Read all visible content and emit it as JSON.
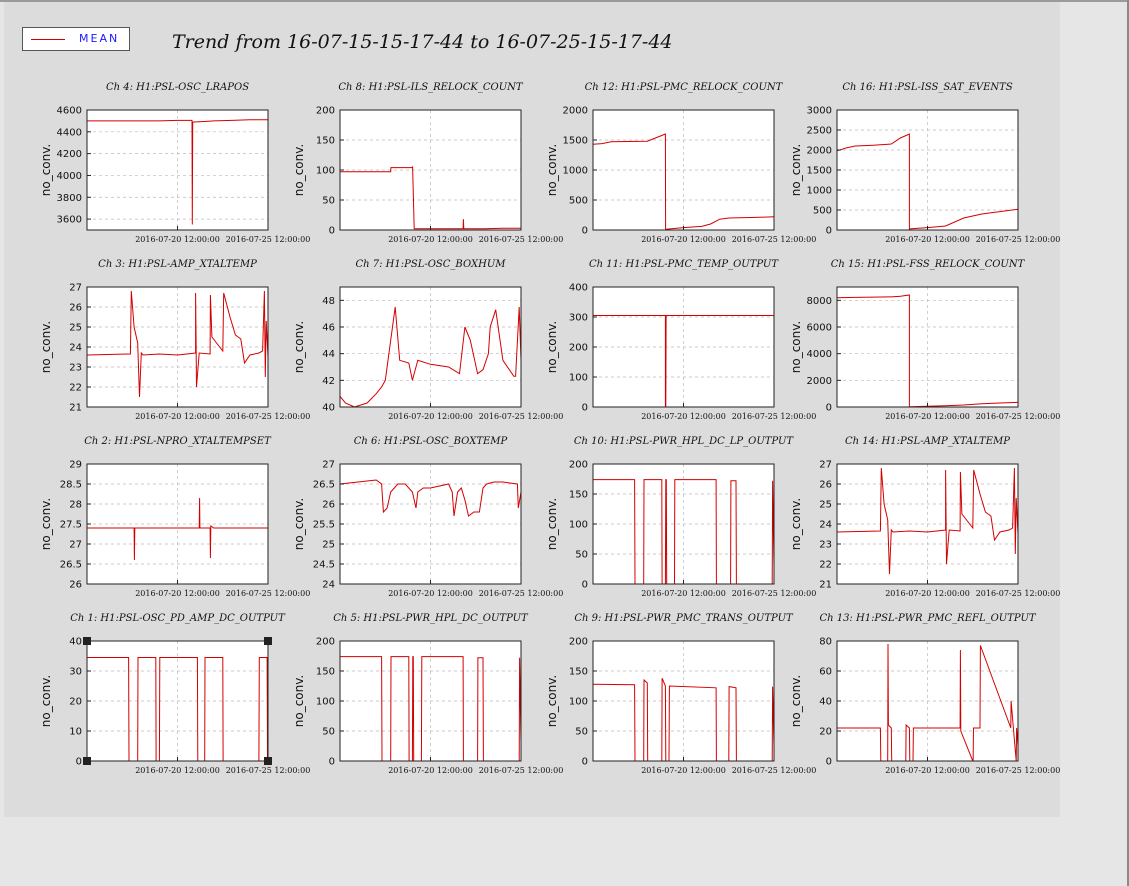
{
  "legend": {
    "label": "MEAN",
    "color": "#d40000"
  },
  "title": "Trend from 16-07-15-15-17-44 to 16-07-25-15-17-44",
  "colors": {
    "series": "#d40000",
    "grid": "#bbbbbb",
    "plot_bg": "#ffffff"
  },
  "chart_data": [
    {
      "type": "line",
      "title": "Ch 4: H1:PSL-OSC_LRAPOS",
      "ylabel": "no_conv.",
      "ylim": [
        3500,
        4600
      ],
      "yticks": [
        3600,
        3800,
        4000,
        4200,
        4400,
        4600
      ],
      "xlim": [
        0,
        10
      ],
      "xticks": [
        5,
        10
      ],
      "xticklabels": [
        "2016-07-20 12:00:00",
        "2016-07-25 12:00:00"
      ],
      "grid": true,
      "x": [
        0,
        1,
        2,
        3,
        4,
        5,
        5.8,
        5.82,
        5.84,
        5.9,
        6.5,
        7,
        8,
        9,
        10
      ],
      "y": [
        4500,
        4500,
        4500,
        4500,
        4500,
        4505,
        4505,
        3550,
        4490,
        4490,
        4495,
        4500,
        4505,
        4510,
        4510
      ]
    },
    {
      "type": "line",
      "title": "Ch 8: H1:PSL-ILS_RELOCK_COUNT",
      "ylabel": "no_conv.",
      "ylim": [
        0,
        200
      ],
      "yticks": [
        0,
        50,
        100,
        150,
        200
      ],
      "xlim": [
        0,
        10
      ],
      "xticks": [
        5,
        10
      ],
      "xticklabels": [
        "2016-07-20 12:00:00",
        "2016-07-25 12:00:00"
      ],
      "grid": true,
      "x": [
        0,
        2.8,
        2.81,
        4,
        4.01,
        4.1,
        4.3,
        5,
        6.8,
        6.82,
        6.84,
        7,
        8,
        9,
        10
      ],
      "y": [
        97,
        97,
        104,
        104,
        106,
        2,
        2,
        2,
        2,
        18,
        2,
        2,
        2,
        3,
        3
      ]
    },
    {
      "type": "line",
      "title": "Ch 12: H1:PSL-PMC_RELOCK_COUNT",
      "ylabel": "no_conv.",
      "ylim": [
        0,
        2000
      ],
      "yticks": [
        0,
        500,
        1000,
        1500,
        2000
      ],
      "xlim": [
        0,
        10
      ],
      "xticks": [
        5,
        10
      ],
      "xticklabels": [
        "2016-07-20 12:00:00",
        "2016-07-25 12:00:00"
      ],
      "grid": true,
      "x": [
        0,
        0.5,
        1,
        3,
        3.5,
        4,
        4.01,
        4.1,
        5,
        6,
        6.5,
        7,
        7.5,
        9,
        10
      ],
      "y": [
        1430,
        1440,
        1470,
        1480,
        1540,
        1600,
        10,
        15,
        40,
        60,
        100,
        180,
        200,
        210,
        220
      ]
    },
    {
      "type": "line",
      "title": "Ch 16: H1:PSL-ISS_SAT_EVENTS",
      "ylabel": "no_conv.",
      "ylim": [
        0,
        3000
      ],
      "yticks": [
        0,
        500,
        1000,
        1500,
        2000,
        2500,
        3000
      ],
      "xlim": [
        0,
        10
      ],
      "xticks": [
        5,
        10
      ],
      "xticklabels": [
        "2016-07-20 12:00:00",
        "2016-07-25 12:00:00"
      ],
      "grid": true,
      "x": [
        0,
        0.5,
        1,
        2,
        3,
        3.5,
        4,
        4,
        4.1,
        5,
        6,
        7,
        8,
        9,
        10
      ],
      "y": [
        1980,
        2050,
        2100,
        2120,
        2150,
        2300,
        2400,
        20,
        30,
        60,
        100,
        300,
        400,
        460,
        520
      ]
    },
    {
      "type": "line",
      "title": "Ch 3: H1:PSL-AMP_XTALTEMP",
      "ylabel": "no_conv.",
      "ylim": [
        21,
        27
      ],
      "yticks": [
        21,
        22,
        23,
        24,
        25,
        26,
        27
      ],
      "xlim": [
        0,
        10
      ],
      "xticks": [
        5,
        10
      ],
      "xticklabels": [
        "2016-07-20 12:00:00",
        "2016-07-25 12:00:00"
      ],
      "grid": true,
      "x": [
        0,
        2.4,
        2.45,
        2.6,
        2.8,
        2.9,
        3,
        3.1,
        4,
        5,
        6,
        6,
        6.05,
        6.2,
        6.8,
        6.82,
        6.9,
        7.5,
        7.55,
        7.9,
        8.2,
        8.5,
        8.7,
        9,
        9.5,
        9.7,
        9.8,
        9.85,
        9.9,
        10
      ],
      "y": [
        23.6,
        23.65,
        26.8,
        25.0,
        24.2,
        21.5,
        23.7,
        23.6,
        23.65,
        23.6,
        23.7,
        26.7,
        22,
        23.7,
        23.65,
        26.6,
        24.5,
        23.8,
        26.7,
        25.5,
        24.6,
        24.4,
        23.2,
        23.6,
        23.7,
        23.8,
        26.8,
        22.5,
        25.3,
        23.5
      ]
    },
    {
      "type": "line",
      "title": "Ch 7: H1:PSL-OSC_BOXHUM",
      "ylabel": "no_conv.",
      "ylim": [
        40,
        49
      ],
      "yticks": [
        40,
        42,
        44,
        46,
        48
      ],
      "xlim": [
        0,
        10
      ],
      "xticks": [
        5,
        10
      ],
      "xticklabels": [
        "2016-07-20 12:00:00",
        "2016-07-25 12:00:00"
      ],
      "grid": true,
      "x": [
        0,
        0.3,
        0.8,
        1.5,
        2,
        2.3,
        2.5,
        2.8,
        3.05,
        3.3,
        3.8,
        4,
        4.3,
        5,
        6,
        6.6,
        6.9,
        7.2,
        7.6,
        7.9,
        8.2,
        8.3,
        8.6,
        9,
        9.6,
        9.7,
        9.9,
        10
      ],
      "y": [
        40.8,
        40.3,
        40.0,
        40.3,
        41.0,
        41.5,
        42.0,
        45.0,
        47.5,
        43.5,
        43.3,
        42.0,
        43.5,
        43.2,
        43.0,
        42.5,
        46.0,
        45.0,
        42.5,
        42.8,
        44.0,
        46.0,
        47.3,
        43.5,
        42.3,
        42.3,
        47.5,
        43.5
      ]
    },
    {
      "type": "line",
      "title": "Ch 11: H1:PSL-PMC_TEMP_OUTPUT",
      "ylabel": "no_conv.",
      "ylim": [
        0,
        400
      ],
      "yticks": [
        0,
        100,
        200,
        300,
        400
      ],
      "xlim": [
        0,
        10
      ],
      "xticks": [
        5,
        10
      ],
      "xticklabels": [
        "2016-07-20 12:00:00",
        "2016-07-25 12:00:00"
      ],
      "grid": true,
      "x": [
        0,
        2,
        4,
        4.0,
        4.02,
        4.04,
        5,
        6,
        8,
        10
      ],
      "y": [
        305,
        305,
        305,
        0,
        0,
        305,
        305,
        305,
        305,
        305
      ]
    },
    {
      "type": "line",
      "title": "Ch 15: H1:PSL-FSS_RELOCK_COUNT",
      "ylabel": "no_conv.",
      "ylim": [
        0,
        9000
      ],
      "yticks": [
        0,
        2000,
        4000,
        6000,
        8000
      ],
      "xlim": [
        0,
        10
      ],
      "xticks": [
        5,
        10
      ],
      "xticklabels": [
        "2016-07-20 12:00:00",
        "2016-07-25 12:00:00"
      ],
      "grid": true,
      "x": [
        0,
        1,
        2,
        3,
        3.5,
        4,
        4,
        4.1,
        5,
        6,
        7,
        8,
        9,
        10
      ],
      "y": [
        8200,
        8220,
        8240,
        8260,
        8300,
        8400,
        10,
        20,
        60,
        100,
        150,
        250,
        300,
        350
      ]
    },
    {
      "type": "line",
      "title": "Ch 2: H1:PSL-NPRO_XTALTEMPSET",
      "ylabel": "no_conv.",
      "ylim": [
        26,
        29
      ],
      "yticks": [
        26,
        26.5,
        27,
        27.5,
        28,
        28.5,
        29
      ],
      "xlim": [
        0,
        10
      ],
      "xticks": [
        5,
        10
      ],
      "xticklabels": [
        "2016-07-20 12:00:00",
        "2016-07-25 12:00:00"
      ],
      "grid": true,
      "x": [
        0,
        2.4,
        2.6,
        2.62,
        2.64,
        3,
        4,
        5,
        6.2,
        6.22,
        6.24,
        6.8,
        6.82,
        6.84,
        7,
        8,
        9,
        10
      ],
      "y": [
        27.4,
        27.4,
        27.4,
        26.6,
        27.4,
        27.4,
        27.4,
        27.4,
        27.4,
        28.15,
        27.4,
        27.4,
        26.65,
        27.45,
        27.4,
        27.4,
        27.4,
        27.4
      ]
    },
    {
      "type": "line",
      "title": "Ch 6: H1:PSL-OSC_BOXTEMP",
      "ylabel": "no_conv.",
      "ylim": [
        24,
        27
      ],
      "yticks": [
        24,
        24.5,
        25,
        25.5,
        26,
        26.5,
        27
      ],
      "xlim": [
        0,
        10
      ],
      "xticks": [
        5,
        10
      ],
      "xticklabels": [
        "2016-07-20 12:00:00",
        "2016-07-25 12:00:00"
      ],
      "grid": true,
      "x": [
        0,
        1,
        2,
        2.3,
        2.4,
        2.6,
        2.8,
        3.2,
        3.6,
        4,
        4.2,
        4.3,
        4.6,
        5,
        6,
        6.2,
        6.3,
        6.5,
        6.7,
        6.9,
        7.1,
        7.4,
        7.7,
        7.9,
        8.1,
        8.5,
        9,
        9.8,
        9.85,
        10
      ],
      "y": [
        26.5,
        26.55,
        26.6,
        26.5,
        25.8,
        25.9,
        26.3,
        26.5,
        26.5,
        26.3,
        25.9,
        26.3,
        26.4,
        26.4,
        26.5,
        26.3,
        25.7,
        26.3,
        26.4,
        26.1,
        25.7,
        25.8,
        25.8,
        26.4,
        26.5,
        26.55,
        26.55,
        26.5,
        25.9,
        26.3
      ]
    },
    {
      "type": "line",
      "title": "Ch 10: H1:PSL-PWR_HPL_DC_LP_OUTPUT",
      "ylabel": "no_conv.",
      "ylim": [
        0,
        200
      ],
      "yticks": [
        0,
        50,
        100,
        150,
        200
      ],
      "xlim": [
        0,
        10
      ],
      "xticks": [
        5,
        10
      ],
      "xticklabels": [
        "2016-07-20 12:00:00",
        "2016-07-25 12:00:00"
      ],
      "grid": true,
      "x": [
        0,
        2.3,
        2.32,
        2.8,
        2.82,
        3.8,
        3.82,
        4,
        4.02,
        4.05,
        4.07,
        4.5,
        4.52,
        6.8,
        6.82,
        7.6,
        7.62,
        7.9,
        7.92,
        9.9,
        9.92,
        10
      ],
      "y": [
        174,
        174,
        0,
        0,
        174,
        174,
        0,
        0,
        174,
        174,
        0,
        0,
        174,
        174,
        0,
        0,
        172,
        172,
        0,
        0,
        172,
        30
      ]
    },
    {
      "type": "line",
      "title": "Ch 14: H1:PSL-AMP_XTALTEMP",
      "ylabel": "no_conv.",
      "ylim": [
        21,
        27
      ],
      "yticks": [
        21,
        22,
        23,
        24,
        25,
        26,
        27
      ],
      "xlim": [
        0,
        10
      ],
      "xticks": [
        5,
        10
      ],
      "xticklabels": [
        "2016-07-20 12:00:00",
        "2016-07-25 12:00:00"
      ],
      "grid": true,
      "x": [
        0,
        2.4,
        2.45,
        2.6,
        2.8,
        2.9,
        3,
        3.1,
        4,
        5,
        6,
        6,
        6.05,
        6.2,
        6.8,
        6.82,
        6.9,
        7.5,
        7.55,
        7.9,
        8.2,
        8.5,
        8.7,
        9,
        9.5,
        9.7,
        9.8,
        9.85,
        9.9,
        10
      ],
      "y": [
        23.6,
        23.65,
        26.8,
        25.0,
        24.2,
        21.5,
        23.7,
        23.6,
        23.65,
        23.6,
        23.7,
        26.7,
        22,
        23.7,
        23.65,
        26.6,
        24.5,
        23.8,
        26.7,
        25.5,
        24.6,
        24.4,
        23.2,
        23.6,
        23.7,
        23.8,
        26.8,
        22.5,
        25.3,
        23.5
      ]
    },
    {
      "type": "line",
      "title": "Ch 1: H1:PSL-OSC_PD_AMP_DC_OUTPUT",
      "ylabel": "no_conv.",
      "ylim": [
        0,
        40
      ],
      "yticks": [
        0,
        10,
        20,
        30,
        40
      ],
      "xlim": [
        0,
        10
      ],
      "xticks": [
        5,
        10
      ],
      "xticklabels": [
        "2016-07-20 12:00:00",
        "2016-07-25 12:00:00"
      ],
      "grid": true,
      "x": [
        0,
        2.3,
        2.32,
        2.8,
        2.82,
        3.8,
        3.82,
        4.0,
        4.02,
        6.1,
        6.12,
        6.5,
        6.52,
        7.5,
        7.52,
        9.5,
        9.52,
        9.95,
        9.97,
        10
      ],
      "y": [
        34.5,
        34.5,
        0,
        0,
        34.5,
        34.5,
        0,
        0,
        34.5,
        34.5,
        0,
        0,
        34.5,
        34.5,
        0,
        0,
        34.5,
        34.5,
        0,
        34
      ]
    },
    {
      "type": "line",
      "title": "Ch 5: H1:PSL-PWR_HPL_DC_OUTPUT",
      "ylabel": "no_conv.",
      "ylim": [
        0,
        200
      ],
      "yticks": [
        0,
        50,
        100,
        150,
        200
      ],
      "xlim": [
        0,
        10
      ],
      "xticks": [
        5,
        10
      ],
      "xticklabels": [
        "2016-07-20 12:00:00",
        "2016-07-25 12:00:00"
      ],
      "grid": true,
      "x": [
        0,
        2.3,
        2.32,
        2.8,
        2.82,
        3.8,
        3.82,
        4,
        4.02,
        4.05,
        4.07,
        4.5,
        4.52,
        6.8,
        6.82,
        7.6,
        7.62,
        7.9,
        7.92,
        9.9,
        9.92,
        10
      ],
      "y": [
        174,
        174,
        0,
        0,
        174,
        174,
        0,
        0,
        174,
        174,
        0,
        0,
        174,
        174,
        0,
        0,
        172,
        172,
        0,
        0,
        172,
        30
      ]
    },
    {
      "type": "line",
      "title": "Ch 9: H1:PSL-PWR_PMC_TRANS_OUTPUT",
      "ylabel": "no_conv.",
      "ylim": [
        0,
        200
      ],
      "yticks": [
        0,
        50,
        100,
        150,
        200
      ],
      "xlim": [
        0,
        10
      ],
      "xticks": [
        5,
        10
      ],
      "xticklabels": [
        "2016-07-20 12:00:00",
        "2016-07-25 12:00:00"
      ],
      "grid": true,
      "x": [
        0,
        2.3,
        2.32,
        2.8,
        2.82,
        3.0,
        3.02,
        3.8,
        3.82,
        4.0,
        4.02,
        4.2,
        4.22,
        6.8,
        6.82,
        7.5,
        7.52,
        7.9,
        7.92,
        9.9,
        9.92,
        10
      ],
      "y": [
        128,
        127,
        0,
        0,
        135,
        130,
        0,
        0,
        138,
        125,
        0,
        0,
        125,
        122,
        0,
        0,
        124,
        122,
        0,
        0,
        124,
        25
      ]
    },
    {
      "type": "line",
      "title": "Ch 13: H1:PSL-PWR_PMC_REFL_OUTPUT",
      "ylabel": "no_conv.",
      "ylim": [
        0,
        80
      ],
      "yticks": [
        0,
        20,
        40,
        60,
        80
      ],
      "xlim": [
        0,
        10
      ],
      "xticks": [
        5,
        10
      ],
      "xticklabels": [
        "2016-07-20 12:00:00",
        "2016-07-25 12:00:00"
      ],
      "grid": true,
      "x": [
        0,
        2.4,
        2.42,
        2.8,
        2.82,
        2.84,
        3.0,
        3.02,
        3.8,
        3.82,
        4.0,
        4.02,
        4.2,
        4.22,
        6.8,
        6.82,
        6.84,
        7.5,
        7.52,
        7.54,
        7.9,
        7.92,
        9.6,
        9.62,
        9.9,
        9.92,
        10
      ],
      "y": [
        22,
        22,
        0,
        0,
        78,
        24,
        22,
        0,
        0,
        24,
        22,
        0,
        0,
        22,
        22,
        74,
        20,
        0,
        0,
        22,
        22,
        77,
        22,
        40,
        0,
        22,
        10
      ]
    }
  ]
}
